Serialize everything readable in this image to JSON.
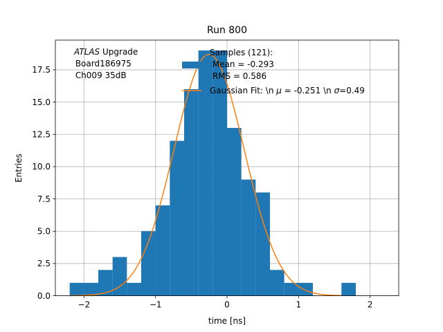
{
  "chart_data": {
    "type": "bar",
    "title": "Run 800",
    "xlabel": "time [ns]",
    "ylabel": "Entries",
    "xlim": [
      -2.4,
      2.4
    ],
    "ylim": [
      0,
      19.8
    ],
    "grid": true,
    "bin_width": 0.2,
    "bins": [
      {
        "x0": -2.2,
        "count": 1
      },
      {
        "x0": -2.0,
        "count": 1
      },
      {
        "x0": -1.8,
        "count": 2
      },
      {
        "x0": -1.6,
        "count": 3
      },
      {
        "x0": -1.4,
        "count": 1
      },
      {
        "x0": -1.2,
        "count": 5
      },
      {
        "x0": -1.0,
        "count": 7
      },
      {
        "x0": -0.8,
        "count": 12
      },
      {
        "x0": -0.6,
        "count": 16
      },
      {
        "x0": -0.4,
        "count": 19
      },
      {
        "x0": -0.2,
        "count": 19
      },
      {
        "x0": 0.0,
        "count": 13
      },
      {
        "x0": 0.2,
        "count": 9
      },
      {
        "x0": 0.4,
        "count": 8
      },
      {
        "x0": 0.6,
        "count": 2
      },
      {
        "x0": 0.8,
        "count": 1
      },
      {
        "x0": 1.0,
        "count": 1
      },
      {
        "x0": 1.6,
        "count": 1
      }
    ],
    "gaussian_fit": {
      "mu": -0.251,
      "sigma": 0.49,
      "amplitude": 18.7
    },
    "xticks": [
      -2,
      -1,
      0,
      1,
      2
    ],
    "xtick_labels": [
      "−2",
      "−1",
      "0",
      "1",
      "2"
    ],
    "yticks": [
      0,
      2.5,
      5,
      7.5,
      10,
      12.5,
      15,
      17.5
    ],
    "ytick_labels": [
      "0.0",
      "2.5",
      "5.0",
      "7.5",
      "10.0",
      "12.5",
      "15.0",
      "17.5"
    ],
    "colors": {
      "histogram": "#1f77b4",
      "fit": "#ff7f0e",
      "grid": "#b0b0b0"
    },
    "annotation": {
      "line1_italic": "ATLAS",
      "line1_rest": " Upgrade",
      "line2": " Board186975",
      "line3": " Ch009 35dB"
    },
    "legend": {
      "placement": "top-right",
      "samples_line1": "Samples (121):",
      "samples_line2": " Mean = -0.293",
      "samples_line3": " RMS = 0.586",
      "fit_pre": "Gaussian Fit: \\n ",
      "fit_mu_sym": "μ",
      "fit_mid": " = -0.251 \\n ",
      "fit_sigma_sym": "σ",
      "fit_post": "=0.49"
    }
  }
}
